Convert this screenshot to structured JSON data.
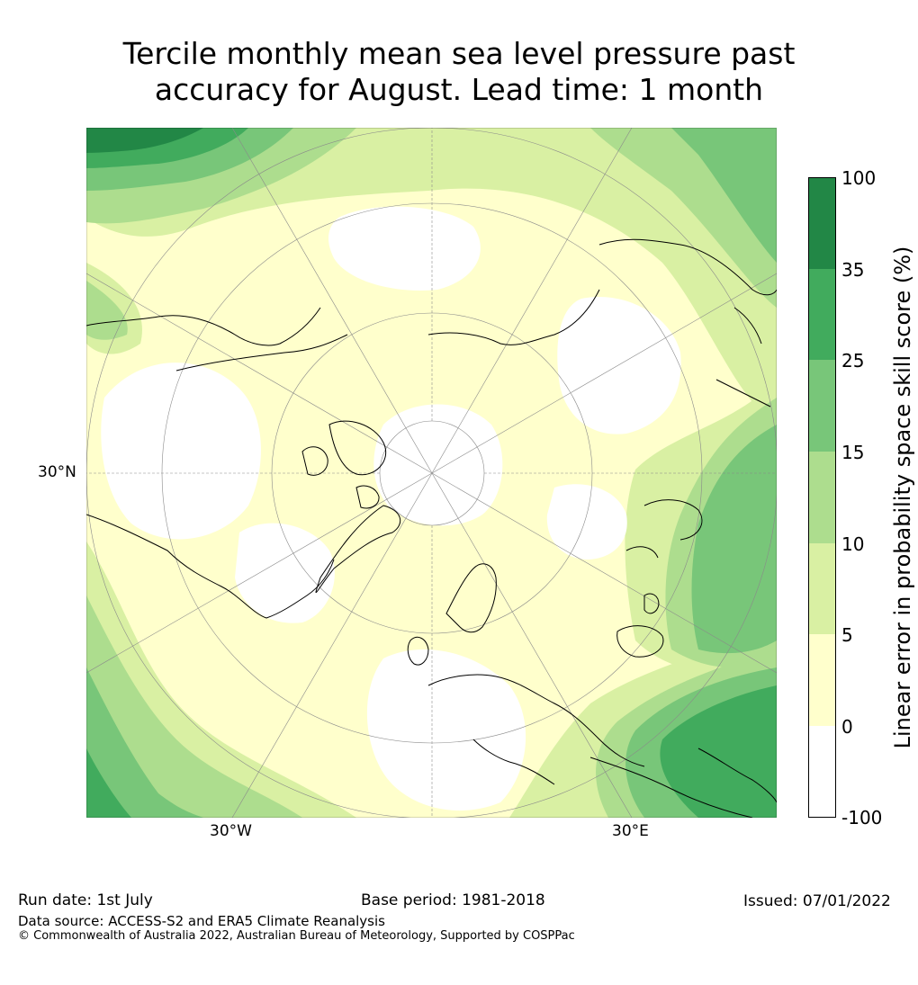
{
  "title": {
    "line1": "Tercile monthly mean sea level pressure past",
    "line2": "accuracy for August. Lead time: 1 month"
  },
  "map": {
    "projection": "north polar stereographic",
    "labels": {
      "lat_30n": "30°N",
      "lon_30w": "30°W",
      "lon_30e": "30°E"
    }
  },
  "colorbar": {
    "label": "Linear error in probability space skill score (%)",
    "ticks": [
      "100",
      "35",
      "25",
      "15",
      "10",
      "5",
      "0",
      "-100"
    ],
    "bins": [
      {
        "range": "35 to 100",
        "color": "#228746"
      },
      {
        "range": "25 to 35",
        "color": "#41ab5d"
      },
      {
        "range": "15 to 25",
        "color": "#78c679"
      },
      {
        "range": "10 to 15",
        "color": "#addd8e"
      },
      {
        "range": "5 to 10",
        "color": "#d9f0a3"
      },
      {
        "range": "0 to 5",
        "color": "#ffffcc"
      },
      {
        "range": "-100 to 0",
        "color": "#ffffff"
      }
    ]
  },
  "footer": {
    "run_date": "Run date: 1st July",
    "base_period": "Base period: 1981-2018",
    "issued": "Issued: 07/01/2022",
    "data_source": "Data source: ACCESS-S2 and ERA5 Climate Reanalysis",
    "copyright": "© Commonwealth of Australia 2022, Australian Bureau of Meteorology, Supported by COSPPac"
  }
}
